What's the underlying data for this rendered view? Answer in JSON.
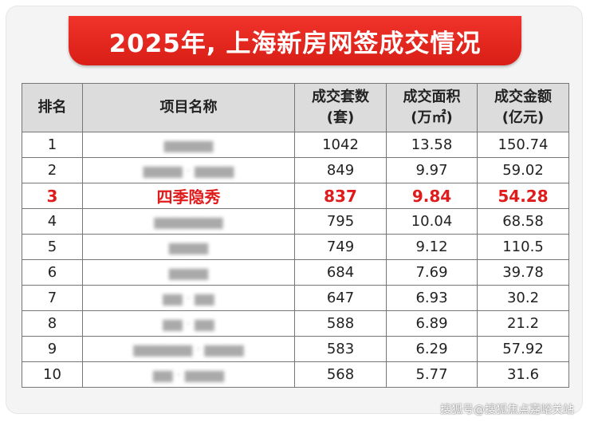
{
  "banner": {
    "title": "2025年, 上海新房网签成交情况"
  },
  "table": {
    "headers": {
      "rank": "排名",
      "name": "项目名称",
      "units_line1": "成交套数",
      "units_line2": "(套)",
      "area_line1": "成交面积",
      "area_line2": "(万㎡)",
      "amount_line1": "成交金额",
      "amount_line2": "(亿元)"
    },
    "rows": [
      {
        "rank": "1",
        "name": "",
        "units": "1042",
        "area": "13.58",
        "amount": "150.74"
      },
      {
        "rank": "2",
        "name": "",
        "units": "849",
        "area": "9.97",
        "amount": "59.02"
      },
      {
        "rank": "3",
        "name": "四季隐秀",
        "units": "837",
        "area": "9.84",
        "amount": "54.28"
      },
      {
        "rank": "4",
        "name": "",
        "units": "795",
        "area": "10.04",
        "amount": "68.58"
      },
      {
        "rank": "5",
        "name": "",
        "units": "749",
        "area": "9.12",
        "amount": "110.5"
      },
      {
        "rank": "6",
        "name": "",
        "units": "684",
        "area": "7.69",
        "amount": "39.78"
      },
      {
        "rank": "7",
        "name": "",
        "units": "647",
        "area": "6.93",
        "amount": "30.2"
      },
      {
        "rank": "8",
        "name": "",
        "units": "588",
        "area": "6.89",
        "amount": "21.2"
      },
      {
        "rank": "9",
        "name": "",
        "units": "583",
        "area": "6.29",
        "amount": "57.92"
      },
      {
        "rank": "10",
        "name": "",
        "units": "568",
        "area": "5.77",
        "amount": "31.6"
      }
    ]
  },
  "watermark": "搜狐号@搜狐焦点嘉峪关站",
  "colors": {
    "banner": "#e0261e",
    "highlight": "#e01b1b",
    "header_bg": "#dcdcdc"
  }
}
